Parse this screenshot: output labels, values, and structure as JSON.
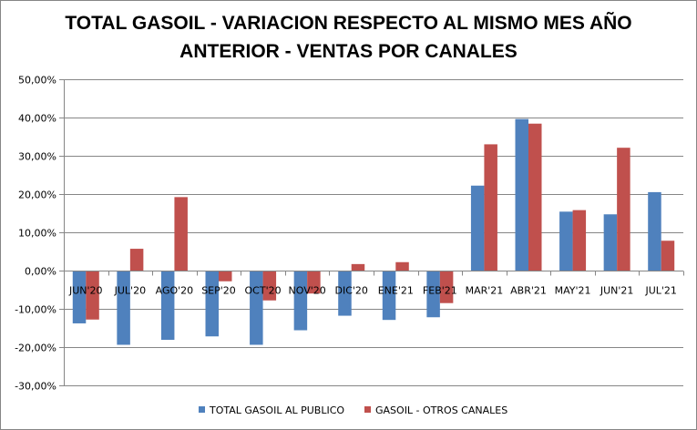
{
  "chart_data": {
    "type": "bar",
    "title_lines": [
      "TOTAL GASOIL - VARIACION RESPECTO AL MISMO MES AÑO",
      "ANTERIOR - VENTAS POR CANALES"
    ],
    "categories": [
      "JUN'20",
      "JUL'20",
      "AGO'20",
      "SEP'20",
      "OCT'20",
      "NOV'20",
      "DIC'20",
      "ENE'21",
      "FEB'21",
      "MAR'21",
      "ABR'21",
      "MAY'21",
      "JUN'21",
      "JUL'21"
    ],
    "series": [
      {
        "name": "TOTAL GASOIL AL PUBLICO",
        "color": "#4F81BD",
        "values": [
          -13.8,
          -19.4,
          -18.1,
          -17.2,
          -19.4,
          -15.6,
          -11.8,
          -12.9,
          -12.2,
          22.2,
          39.6,
          15.4,
          14.7,
          20.5
        ]
      },
      {
        "name": "GASOIL - OTROS CANALES",
        "color": "#C0504D",
        "values": [
          -12.8,
          5.7,
          19.2,
          -2.8,
          -7.8,
          -6.0,
          1.7,
          2.2,
          -8.5,
          33.0,
          38.4,
          15.8,
          32.1,
          7.8
        ]
      }
    ],
    "y_ticks": [
      "50,00%",
      "40,00%",
      "30,00%",
      "20,00%",
      "10,00%",
      "0,00%",
      "-10,00%",
      "-20,00%",
      "-30,00%"
    ],
    "ylim": [
      -30,
      50
    ],
    "xlabel": "",
    "ylabel": "",
    "grid": true,
    "legend_position": "bottom"
  }
}
